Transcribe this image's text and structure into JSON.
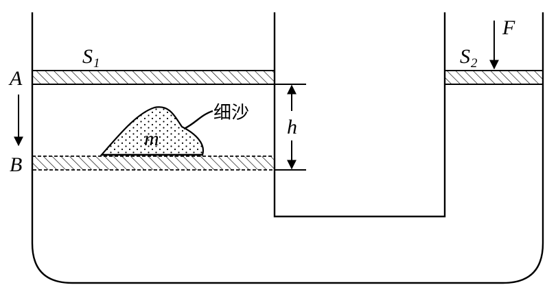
{
  "labels": {
    "piston_left_area": "S",
    "piston_left_sub": "1",
    "piston_right_area": "S",
    "piston_right_sub": "2",
    "position_a": "A",
    "position_b": "B",
    "force": "F",
    "height": "h",
    "mass": "m",
    "sand": "细沙"
  }
}
